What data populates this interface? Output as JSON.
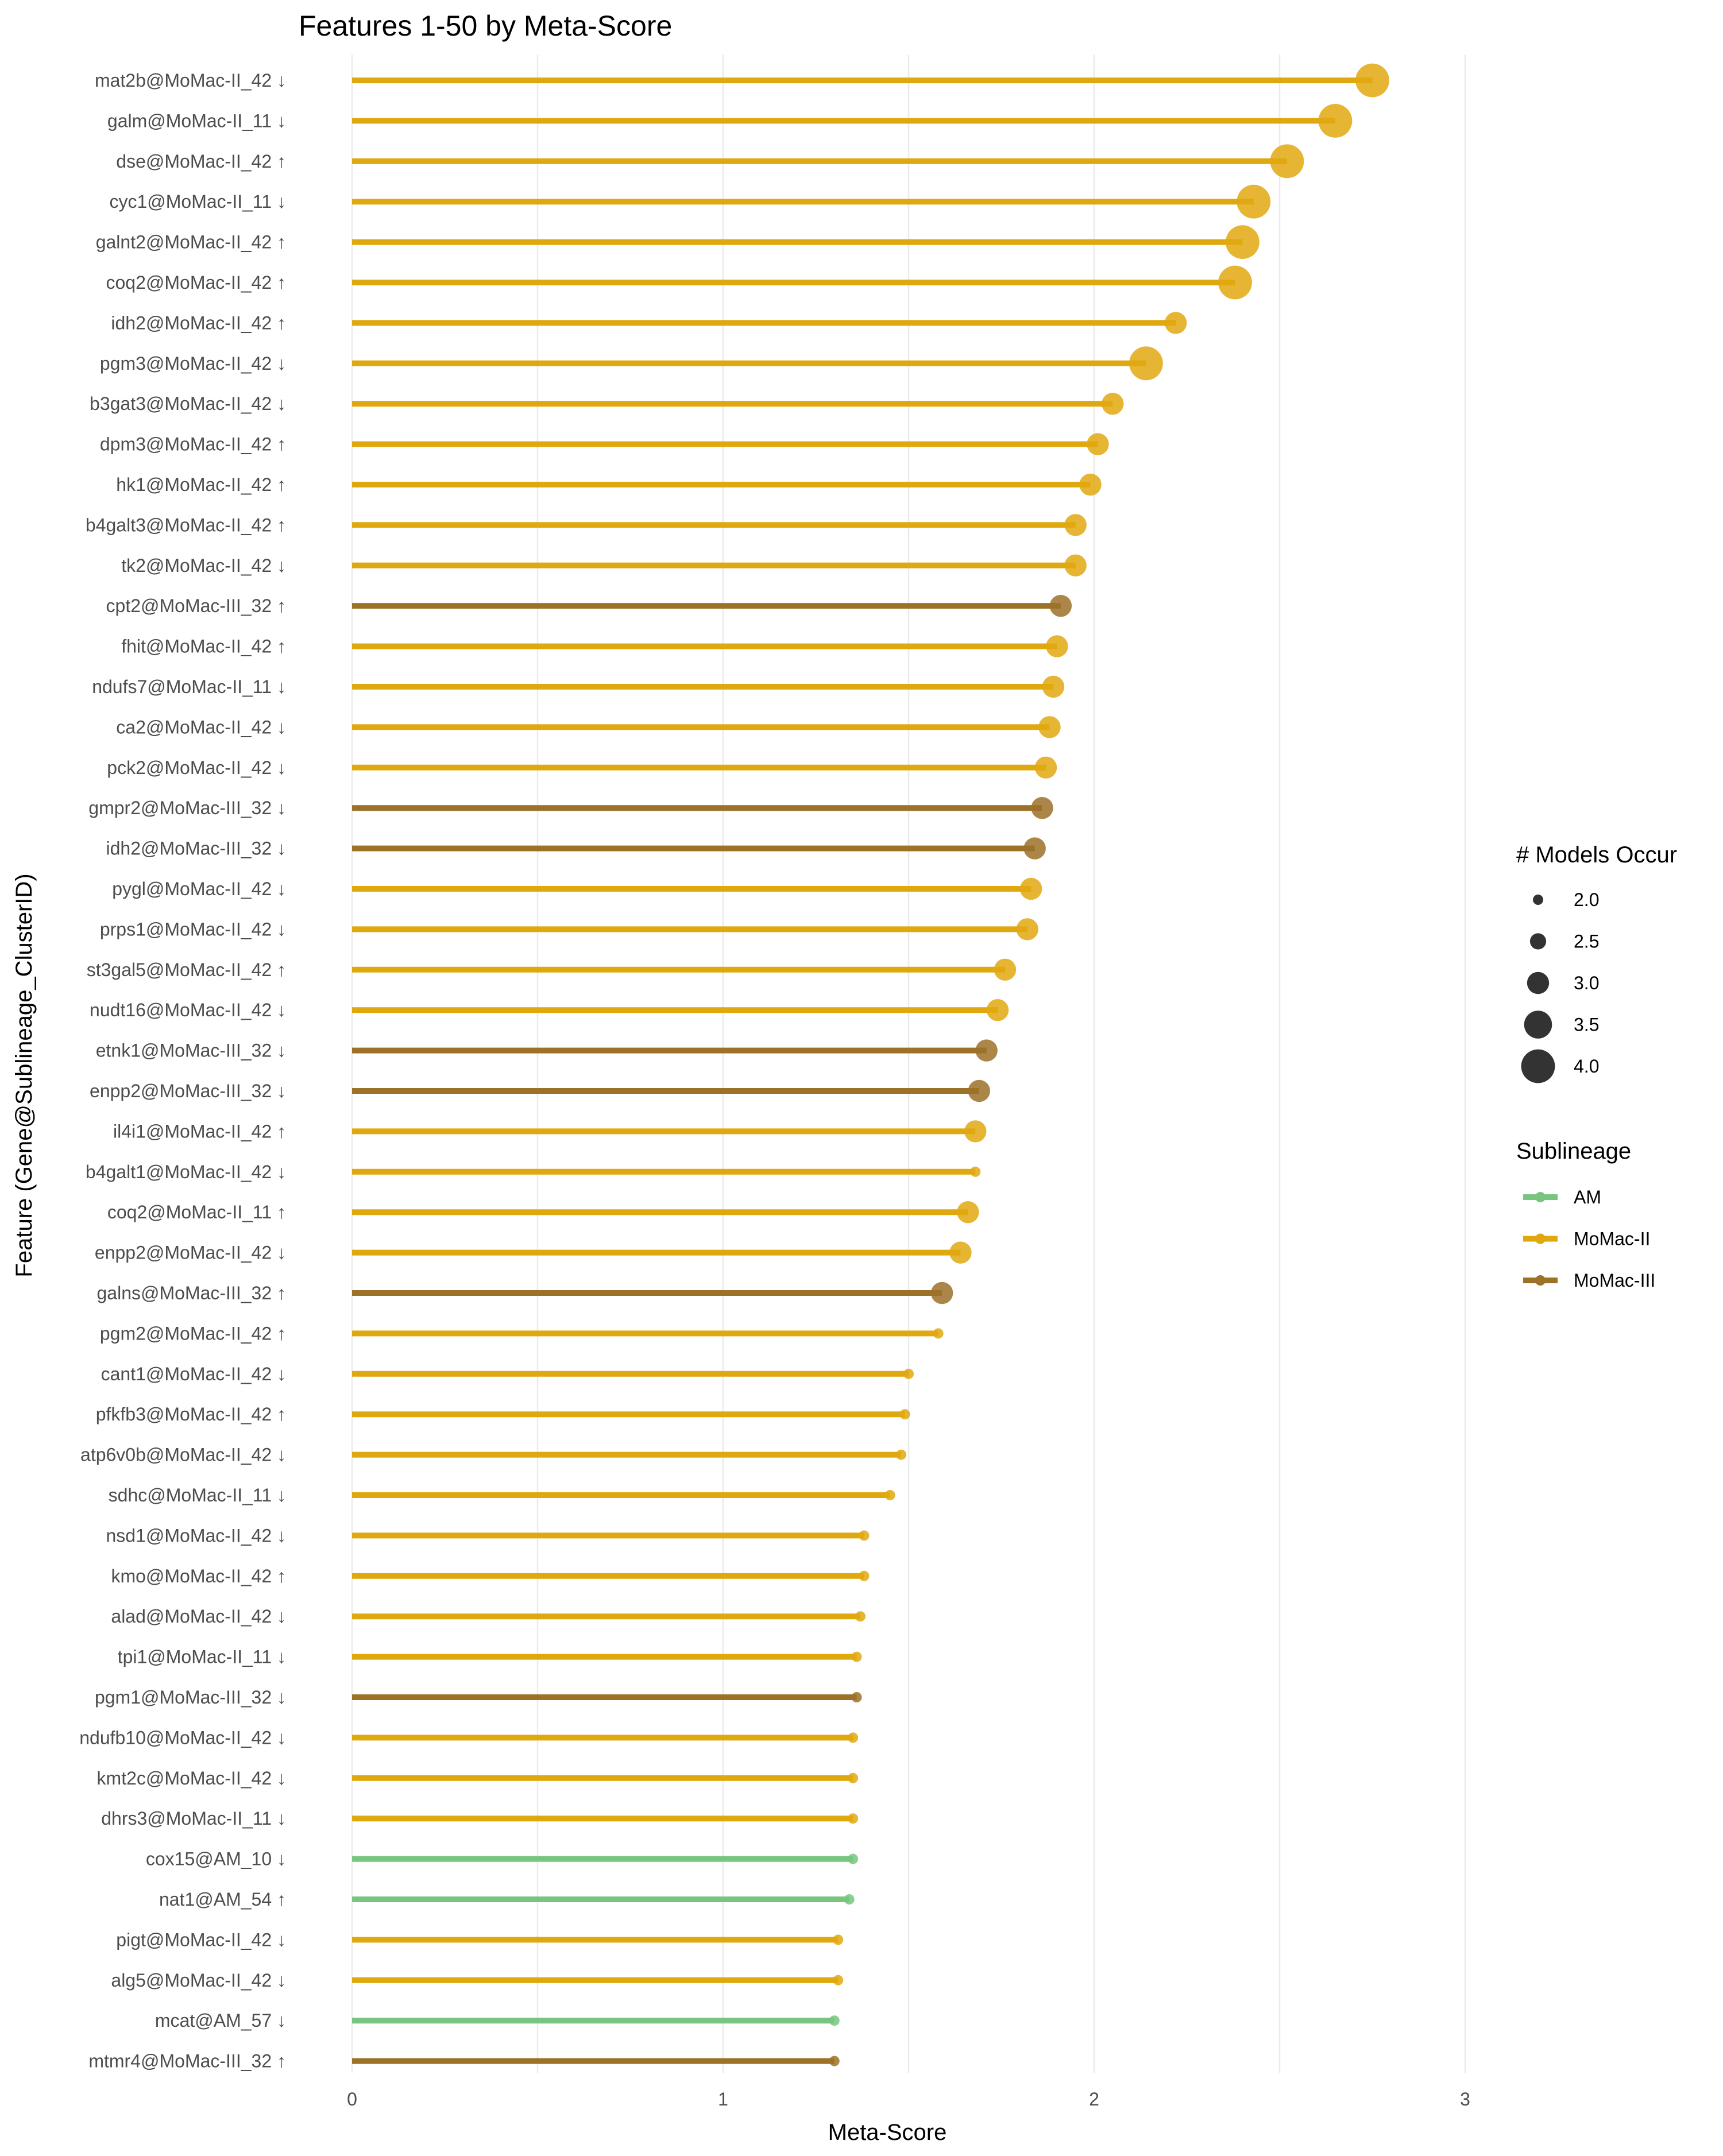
{
  "chart_data": {
    "type": "lollipop",
    "title": "Features 1-50 by Meta-Score",
    "xlabel": "Meta-Score",
    "ylabel": "Feature (Gene@Sublineage_ClusterID)",
    "xlim": [
      0,
      3.2
    ],
    "xticks": [
      0,
      1,
      2,
      3
    ],
    "grid": "vertical",
    "colors": {
      "AM": "#77C57F",
      "MoMac-II": "#E0A80F",
      "MoMac-III": "#9C7128"
    },
    "legend_size": {
      "title": "# Models Occur",
      "values": [
        2.0,
        2.5,
        3.0,
        3.5,
        4.0
      ],
      "labels": [
        "2.0",
        "2.5",
        "3.0",
        "3.5",
        "4.0"
      ]
    },
    "legend_color": {
      "title": "Sublineage",
      "entries": [
        "AM",
        "MoMac-II",
        "MoMac-III"
      ]
    },
    "features": [
      {
        "label": "mat2b@MoMac-II_42 ↓",
        "value": 2.75,
        "group": "MoMac-II",
        "models": 4
      },
      {
        "label": "galm@MoMac-II_11 ↓",
        "value": 2.65,
        "group": "MoMac-II",
        "models": 4
      },
      {
        "label": "dse@MoMac-II_42 ↑",
        "value": 2.52,
        "group": "MoMac-II",
        "models": 4
      },
      {
        "label": "cyc1@MoMac-II_11 ↓",
        "value": 2.43,
        "group": "MoMac-II",
        "models": 4
      },
      {
        "label": "galnt2@MoMac-II_42 ↑",
        "value": 2.4,
        "group": "MoMac-II",
        "models": 4
      },
      {
        "label": "coq2@MoMac-II_42 ↑",
        "value": 2.38,
        "group": "MoMac-II",
        "models": 4
      },
      {
        "label": "idh2@MoMac-II_42 ↑",
        "value": 2.22,
        "group": "MoMac-II",
        "models": 3
      },
      {
        "label": "pgm3@MoMac-II_42 ↓",
        "value": 2.14,
        "group": "MoMac-II",
        "models": 4
      },
      {
        "label": "b3gat3@MoMac-II_42 ↓",
        "value": 2.05,
        "group": "MoMac-II",
        "models": 3
      },
      {
        "label": "dpm3@MoMac-II_42 ↑",
        "value": 2.01,
        "group": "MoMac-II",
        "models": 3
      },
      {
        "label": "hk1@MoMac-II_42 ↑",
        "value": 1.99,
        "group": "MoMac-II",
        "models": 3
      },
      {
        "label": "b4galt3@MoMac-II_42 ↑",
        "value": 1.95,
        "group": "MoMac-II",
        "models": 3
      },
      {
        "label": "tk2@MoMac-II_42 ↓",
        "value": 1.95,
        "group": "MoMac-II",
        "models": 3
      },
      {
        "label": "cpt2@MoMac-III_32 ↑",
        "value": 1.91,
        "group": "MoMac-III",
        "models": 3
      },
      {
        "label": "fhit@MoMac-II_42 ↑",
        "value": 1.9,
        "group": "MoMac-II",
        "models": 3
      },
      {
        "label": "ndufs7@MoMac-II_11 ↓",
        "value": 1.89,
        "group": "MoMac-II",
        "models": 3
      },
      {
        "label": "ca2@MoMac-II_42 ↓",
        "value": 1.88,
        "group": "MoMac-II",
        "models": 3
      },
      {
        "label": "pck2@MoMac-II_42 ↓",
        "value": 1.87,
        "group": "MoMac-II",
        "models": 3
      },
      {
        "label": "gmpr2@MoMac-III_32 ↓",
        "value": 1.86,
        "group": "MoMac-III",
        "models": 3
      },
      {
        "label": "idh2@MoMac-III_32 ↓",
        "value": 1.84,
        "group": "MoMac-III",
        "models": 3
      },
      {
        "label": "pygl@MoMac-II_42 ↓",
        "value": 1.83,
        "group": "MoMac-II",
        "models": 3
      },
      {
        "label": "prps1@MoMac-II_42 ↓",
        "value": 1.82,
        "group": "MoMac-II",
        "models": 3
      },
      {
        "label": "st3gal5@MoMac-II_42 ↑",
        "value": 1.76,
        "group": "MoMac-II",
        "models": 3
      },
      {
        "label": "nudt16@MoMac-II_42 ↓",
        "value": 1.74,
        "group": "MoMac-II",
        "models": 3
      },
      {
        "label": "etnk1@MoMac-III_32 ↓",
        "value": 1.71,
        "group": "MoMac-III",
        "models": 3
      },
      {
        "label": "enpp2@MoMac-III_32 ↓",
        "value": 1.69,
        "group": "MoMac-III",
        "models": 3
      },
      {
        "label": "il4i1@MoMac-II_42 ↑",
        "value": 1.68,
        "group": "MoMac-II",
        "models": 3
      },
      {
        "label": "b4galt1@MoMac-II_42 ↓",
        "value": 1.68,
        "group": "MoMac-II",
        "models": 2
      },
      {
        "label": "coq2@MoMac-II_11 ↑",
        "value": 1.66,
        "group": "MoMac-II",
        "models": 3
      },
      {
        "label": "enpp2@MoMac-II_42 ↓",
        "value": 1.64,
        "group": "MoMac-II",
        "models": 3
      },
      {
        "label": "galns@MoMac-III_32 ↑",
        "value": 1.59,
        "group": "MoMac-III",
        "models": 3
      },
      {
        "label": "pgm2@MoMac-II_42 ↑",
        "value": 1.58,
        "group": "MoMac-II",
        "models": 2
      },
      {
        "label": "cant1@MoMac-II_42 ↓",
        "value": 1.5,
        "group": "MoMac-II",
        "models": 2
      },
      {
        "label": "pfkfb3@MoMac-II_42 ↑",
        "value": 1.49,
        "group": "MoMac-II",
        "models": 2
      },
      {
        "label": "atp6v0b@MoMac-II_42 ↓",
        "value": 1.48,
        "group": "MoMac-II",
        "models": 2
      },
      {
        "label": "sdhc@MoMac-II_11 ↓",
        "value": 1.45,
        "group": "MoMac-II",
        "models": 2
      },
      {
        "label": "nsd1@MoMac-II_42 ↓",
        "value": 1.38,
        "group": "MoMac-II",
        "models": 2
      },
      {
        "label": "kmo@MoMac-II_42 ↑",
        "value": 1.38,
        "group": "MoMac-II",
        "models": 2
      },
      {
        "label": "alad@MoMac-II_42 ↓",
        "value": 1.37,
        "group": "MoMac-II",
        "models": 2
      },
      {
        "label": "tpi1@MoMac-II_11 ↓",
        "value": 1.36,
        "group": "MoMac-II",
        "models": 2
      },
      {
        "label": "pgm1@MoMac-III_32 ↓",
        "value": 1.36,
        "group": "MoMac-III",
        "models": 2
      },
      {
        "label": "ndufb10@MoMac-II_42 ↓",
        "value": 1.35,
        "group": "MoMac-II",
        "models": 2
      },
      {
        "label": "kmt2c@MoMac-II_42 ↓",
        "value": 1.35,
        "group": "MoMac-II",
        "models": 2
      },
      {
        "label": "dhrs3@MoMac-II_11 ↓",
        "value": 1.35,
        "group": "MoMac-II",
        "models": 2
      },
      {
        "label": "cox15@AM_10 ↓",
        "value": 1.35,
        "group": "AM",
        "models": 2
      },
      {
        "label": "nat1@AM_54 ↑",
        "value": 1.34,
        "group": "AM",
        "models": 2
      },
      {
        "label": "pigt@MoMac-II_42 ↓",
        "value": 1.31,
        "group": "MoMac-II",
        "models": 2
      },
      {
        "label": "alg5@MoMac-II_42 ↓",
        "value": 1.31,
        "group": "MoMac-II",
        "models": 2
      },
      {
        "label": "mcat@AM_57 ↓",
        "value": 1.3,
        "group": "AM",
        "models": 2
      },
      {
        "label": "mtmr4@MoMac-III_32 ↑",
        "value": 1.3,
        "group": "MoMac-III",
        "models": 2
      }
    ]
  }
}
